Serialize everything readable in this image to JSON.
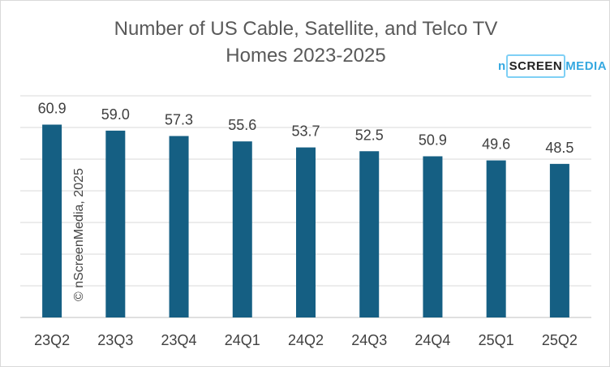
{
  "chart_data": {
    "type": "bar",
    "title_lines": [
      "Number of US Cable, Satellite, and Telco TV",
      "Homes 2023-2025"
    ],
    "categories": [
      "23Q2",
      "23Q3",
      "23Q4",
      "24Q1",
      "24Q2",
      "24Q3",
      "24Q4",
      "25Q1",
      "25Q2"
    ],
    "values": [
      60.9,
      59.0,
      57.3,
      55.6,
      53.7,
      52.5,
      50.9,
      49.6,
      48.5
    ],
    "value_labels": [
      "60.9",
      "59.0",
      "57.3",
      "55.6",
      "53.7",
      "52.5",
      "50.9",
      "49.6",
      "48.5"
    ],
    "ylim": [
      0,
      70
    ],
    "grid_step": 10,
    "grid": true,
    "y_axis_labels_shown": false,
    "bar_color": "#155f83",
    "grid_color": "#d9d9d9"
  },
  "watermark": "© nScreenMedia, 2025",
  "logo": {
    "n": "n",
    "screen": "SCREEN",
    "media": "MEDIA"
  }
}
